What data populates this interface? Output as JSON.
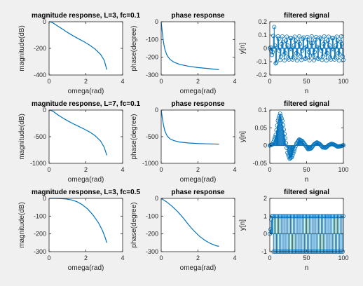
{
  "figure": {
    "background": "#f0f0f0",
    "line_color": "#0072bd"
  },
  "chart_data": [
    {
      "type": "line",
      "title": "magnitude response, L=3, fc=0.1",
      "xlabel": "omega(rad)",
      "ylabel": "magnitude(dB)",
      "xlim": [
        0,
        4
      ],
      "ylim": [
        -400,
        0
      ],
      "xticks": [
        0,
        2,
        4
      ],
      "yticks": [
        -400,
        -200,
        0
      ],
      "series": [
        {
          "x": [
            0,
            0.1,
            0.2,
            0.3,
            0.5,
            0.8,
            1.0,
            1.3,
            1.6,
            1.9,
            2.2,
            2.5,
            2.8,
            3.0,
            3.14
          ],
          "y": [
            0,
            -2,
            -8,
            -17,
            -35,
            -62,
            -80,
            -105,
            -128,
            -150,
            -175,
            -205,
            -245,
            -290,
            -360
          ]
        }
      ]
    },
    {
      "type": "line",
      "title": "phase response",
      "xlabel": "omega(rad)",
      "ylabel": "phase(degree)",
      "xlim": [
        0,
        4
      ],
      "ylim": [
        -300,
        0
      ],
      "xticks": [
        0,
        2,
        4
      ],
      "yticks": [
        -300,
        -200,
        -100,
        0
      ],
      "series": [
        {
          "x": [
            0,
            0.05,
            0.1,
            0.15,
            0.2,
            0.3,
            0.4,
            0.5,
            0.7,
            1.0,
            1.5,
            2.0,
            2.5,
            3.14
          ],
          "y": [
            0,
            -50,
            -95,
            -130,
            -155,
            -185,
            -202,
            -214,
            -228,
            -240,
            -251,
            -258,
            -263,
            -270
          ]
        }
      ]
    },
    {
      "type": "stem",
      "title": "filtered signal",
      "xlabel": "n",
      "ylabel": "y[n]",
      "xlim": [
        0,
        100
      ],
      "ylim": [
        -0.2,
        0.2
      ],
      "xticks": [
        0,
        50,
        100
      ],
      "yticks": [
        -0.2,
        -0.1,
        0,
        0.1,
        0.2
      ],
      "signal": {
        "kind": "osc",
        "n": 100,
        "env": [
          [
            0,
            0
          ],
          [
            3,
            0.05
          ],
          [
            6,
            0.17
          ],
          [
            9,
            0.12
          ],
          [
            12,
            0.09
          ],
          [
            100,
            0.09
          ]
        ],
        "period": 5.7,
        "offset": 0
      }
    },
    {
      "type": "line",
      "title": "magnitude response, L=7, fc=0.1",
      "xlabel": "omega(rad)",
      "ylabel": "magnitude(dB)",
      "xlim": [
        0,
        4
      ],
      "ylim": [
        -1000,
        0
      ],
      "xticks": [
        0,
        2,
        4
      ],
      "yticks": [
        -1000,
        -500,
        0
      ],
      "series": [
        {
          "x": [
            0,
            0.1,
            0.2,
            0.3,
            0.5,
            0.8,
            1.0,
            1.3,
            1.6,
            1.9,
            2.2,
            2.5,
            2.8,
            3.0,
            3.14
          ],
          "y": [
            0,
            -5,
            -20,
            -45,
            -95,
            -160,
            -200,
            -255,
            -305,
            -355,
            -410,
            -480,
            -580,
            -700,
            -850
          ]
        }
      ]
    },
    {
      "type": "line",
      "title": "phase response",
      "xlabel": "omega(rad)",
      "ylabel": "phase(degree)",
      "xlim": [
        0,
        4
      ],
      "ylim": [
        -1000,
        0
      ],
      "xticks": [
        0,
        2,
        4
      ],
      "yticks": [
        -1000,
        -500,
        0
      ],
      "series": [
        {
          "x": [
            0,
            0.05,
            0.1,
            0.15,
            0.2,
            0.3,
            0.4,
            0.5,
            0.7,
            1.0,
            1.5,
            2.0,
            2.5,
            3.14
          ],
          "y": [
            0,
            -120,
            -230,
            -320,
            -390,
            -470,
            -515,
            -545,
            -575,
            -600,
            -618,
            -628,
            -634,
            -640
          ]
        }
      ]
    },
    {
      "type": "stem",
      "title": "filtered signal",
      "xlabel": "n",
      "ylabel": "y[n]",
      "xlim": [
        0,
        100
      ],
      "ylim": [
        -0.05,
        0.1
      ],
      "xticks": [
        0,
        50,
        100
      ],
      "yticks": [
        -0.05,
        0,
        0.05,
        0.1
      ],
      "signal": {
        "kind": "wave",
        "n": 100,
        "points": [
          [
            0,
            0
          ],
          [
            4,
            0.004
          ],
          [
            8,
            0.03
          ],
          [
            11,
            0.07
          ],
          [
            14,
            0.09
          ],
          [
            17,
            0.07
          ],
          [
            21,
            0.02
          ],
          [
            24,
            -0.02
          ],
          [
            27,
            -0.037
          ],
          [
            30,
            -0.032
          ],
          [
            33,
            -0.015
          ],
          [
            36,
            0.005
          ],
          [
            40,
            0.017
          ],
          [
            44,
            0.013
          ],
          [
            48,
            0.002
          ],
          [
            52,
            -0.01
          ],
          [
            56,
            -0.008
          ],
          [
            60,
            0.003
          ],
          [
            64,
            0.009
          ],
          [
            68,
            0.004
          ],
          [
            72,
            -0.005
          ],
          [
            76,
            -0.006
          ],
          [
            80,
            0.001
          ],
          [
            84,
            0.005
          ],
          [
            88,
            0.002
          ],
          [
            92,
            -0.003
          ],
          [
            96,
            -0.002
          ],
          [
            100,
            0.001
          ]
        ]
      }
    },
    {
      "type": "line",
      "title": "magnitude response, L=3, fc=0.5",
      "xlabel": "omega(rad)",
      "ylabel": "magnitude(dB)",
      "xlim": [
        0,
        4
      ],
      "ylim": [
        -300,
        0
      ],
      "xticks": [
        0,
        2,
        4
      ],
      "yticks": [
        -300,
        -200,
        -100,
        0
      ],
      "series": [
        {
          "x": [
            0,
            0.3,
            0.6,
            0.9,
            1.2,
            1.5,
            1.8,
            2.1,
            2.4,
            2.7,
            2.9,
            3.05,
            3.14
          ],
          "y": [
            0,
            0,
            -1,
            -3,
            -8,
            -18,
            -35,
            -60,
            -95,
            -140,
            -180,
            -220,
            -250
          ]
        }
      ]
    },
    {
      "type": "line",
      "title": "phase response",
      "xlabel": "omega(rad)",
      "ylabel": "phase(degree)",
      "xlim": [
        0,
        4
      ],
      "ylim": [
        -300,
        0
      ],
      "xticks": [
        0,
        2,
        4
      ],
      "yticks": [
        -300,
        -200,
        -100,
        0
      ],
      "series": [
        {
          "x": [
            0,
            0.3,
            0.6,
            0.9,
            1.2,
            1.5,
            1.8,
            2.1,
            2.4,
            2.7,
            3.0,
            3.14
          ],
          "y": [
            0,
            -20,
            -45,
            -75,
            -110,
            -150,
            -185,
            -215,
            -238,
            -255,
            -267,
            -270
          ]
        }
      ]
    },
    {
      "type": "stem",
      "title": "filtered signal",
      "xlabel": "n",
      "ylabel": "y[n]",
      "xlim": [
        0,
        100
      ],
      "ylim": [
        -1,
        2
      ],
      "xticks": [
        0,
        50,
        100
      ],
      "yticks": [
        -1,
        0,
        1,
        2
      ],
      "signal": {
        "kind": "alt",
        "n": 100,
        "start": [
          0,
          0.25,
          0.8,
          1.0
        ],
        "amp": 1.0,
        "offset": 0
      }
    }
  ]
}
